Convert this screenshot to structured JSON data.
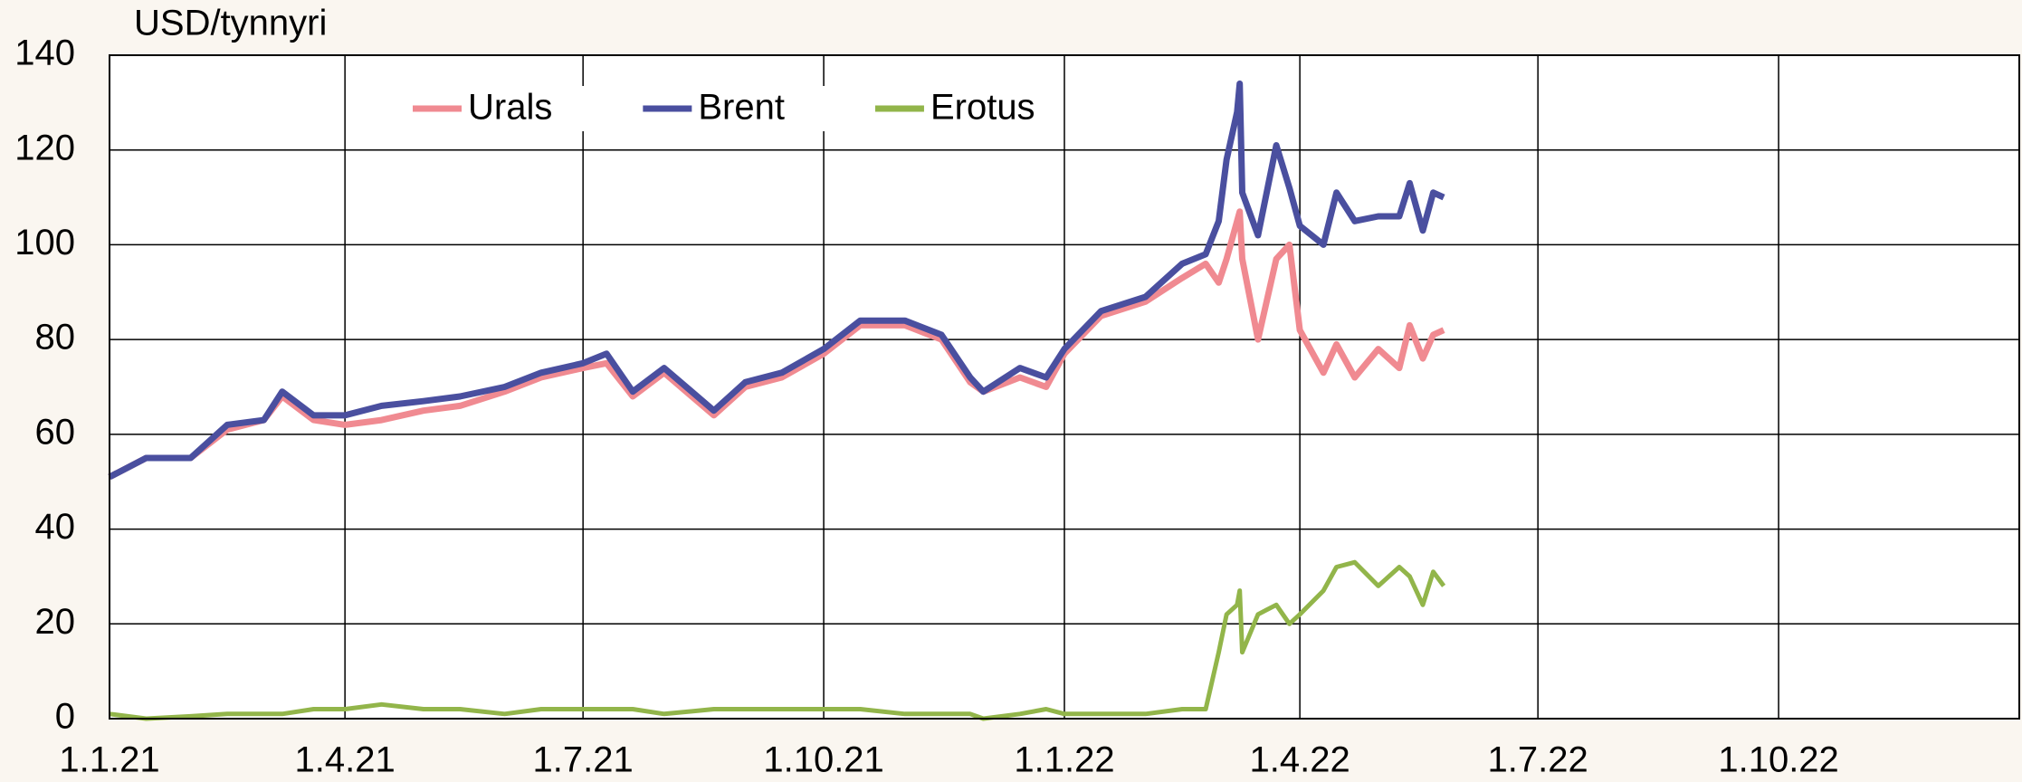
{
  "chart_data": {
    "type": "line",
    "y_label": "USD/tynnyri",
    "x": [
      "1.1.21",
      "15.1.21",
      "1.2.21",
      "15.2.21",
      "1.3.21",
      "8.3.21",
      "20.3.21",
      "1.4.21",
      "15.4.21",
      "1.5.21",
      "15.5.21",
      "1.6.21",
      "15.6.21",
      "1.7.21",
      "10.7.21",
      "20.7.21",
      "1.8.21",
      "20.8.21",
      "1.9.21",
      "15.9.21",
      "1.10.21",
      "15.10.21",
      "1.11.21",
      "15.11.21",
      "26.11.21",
      "1.12.21",
      "15.12.21",
      "25.12.21",
      "1.1.22",
      "15.1.22",
      "1.2.22",
      "15.2.22",
      "24.2.22",
      "1.3.22",
      "4.3.22",
      "8.3.22",
      "9.3.22",
      "10.3.22",
      "16.3.22",
      "23.3.22",
      "28.3.22",
      "1.4.22",
      "10.4.22",
      "15.4.22",
      "22.4.22",
      "1.5.22",
      "9.5.22",
      "13.5.22",
      "18.5.22",
      "22.5.22",
      "26.5.22"
    ],
    "series": [
      {
        "name": "Urals",
        "color": "#f08a91",
        "values": [
          51,
          55,
          55,
          61,
          63,
          68,
          63,
          62,
          63,
          65,
          66,
          69,
          72,
          74,
          75,
          68,
          73,
          64,
          70,
          72,
          77,
          83,
          83,
          80,
          71,
          69,
          72,
          70,
          77,
          85,
          88,
          93,
          96,
          92,
          97,
          105,
          107,
          97,
          80,
          97,
          100,
          82,
          73,
          79,
          72,
          78,
          74,
          83,
          76,
          81,
          82
        ]
      },
      {
        "name": "Brent",
        "color": "#4a4f9f",
        "values": [
          51,
          55,
          55,
          62,
          63,
          69,
          64,
          64,
          66,
          67,
          68,
          70,
          73,
          75,
          77,
          69,
          74,
          65,
          71,
          73,
          78,
          84,
          84,
          81,
          72,
          69,
          74,
          72,
          78,
          86,
          89,
          96,
          98,
          105,
          118,
          128,
          134,
          111,
          102,
          121,
          112,
          104,
          100,
          111,
          105,
          106,
          106,
          113,
          103,
          111,
          110
        ]
      },
      {
        "name": "Erotus",
        "color": "#92b54a",
        "values": [
          1,
          0,
          0.5,
          1,
          1,
          1,
          2,
          2,
          3,
          2,
          2,
          1,
          2,
          2,
          2,
          2,
          1,
          2,
          2,
          2,
          2,
          2,
          1,
          1,
          1,
          0,
          1,
          2,
          1,
          1,
          1,
          2,
          2,
          14,
          22,
          24,
          27,
          14,
          22,
          24,
          20,
          22,
          27,
          32,
          33,
          28,
          32,
          30,
          24,
          31,
          28
        ]
      }
    ],
    "xlim": [
      "1.1.21",
      "1.1.23"
    ],
    "xticks": [
      "1.1.21",
      "1.4.21",
      "1.7.21",
      "1.10.21",
      "1.1.22",
      "1.4.22",
      "1.7.22",
      "1.10.22"
    ],
    "ylim": [
      0,
      140
    ],
    "yticks": [
      0,
      20,
      40,
      60,
      80,
      100,
      120,
      140
    ],
    "grid": true
  }
}
